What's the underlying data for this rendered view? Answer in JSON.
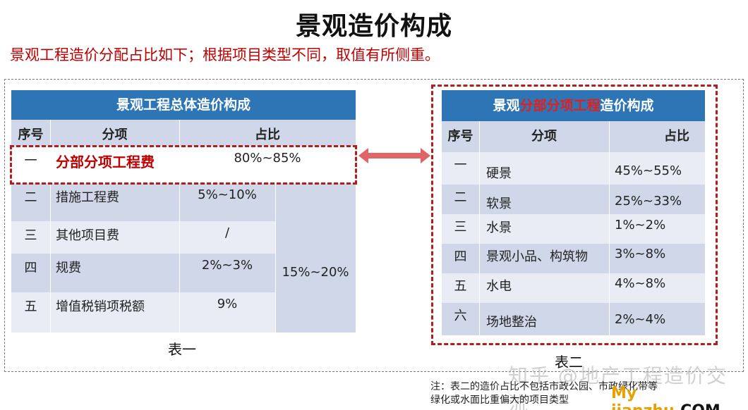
{
  "title": "景观造价构成",
  "subtitle": "景观工程造价分配占比如下；根据项目类型不同，取值有所侧重。",
  "table1": {
    "title": "景观工程总体造价构成",
    "headers": [
      "序号",
      "分项",
      "占比"
    ],
    "rows": [
      {
        "no": "一",
        "item": "分部分项工程费",
        "ratio": "80%~85%"
      },
      {
        "no": "二",
        "item": "措施工程费",
        "ratio": "5%~10%"
      },
      {
        "no": "三",
        "item": "其他项目费",
        "ratio": "/"
      },
      {
        "no": "四",
        "item": "规费",
        "ratio": "2%~3%"
      },
      {
        "no": "五",
        "item": "增值税销项税额",
        "ratio": "9%"
      }
    ],
    "combined_ratio": "15%~20%",
    "caption": "表一"
  },
  "table2": {
    "title_prefix": "景观",
    "title_highlight": "分部分项工程",
    "title_suffix": "造价构成",
    "headers": [
      "序号",
      "分项",
      "占比"
    ],
    "rows": [
      {
        "no": "一",
        "item": "硬景",
        "ratio": "45%~55%"
      },
      {
        "no": "二",
        "item": "软景",
        "ratio": "25%~33%"
      },
      {
        "no": "三",
        "item": "水景",
        "ratio": "1%~2%"
      },
      {
        "no": "四",
        "item": "景观小品、构筑物",
        "ratio": "3%~8%"
      },
      {
        "no": "五",
        "item": "水电",
        "ratio": "4%~8%"
      },
      {
        "no": "六",
        "item": "场地整治",
        "ratio": "2%~4%"
      }
    ],
    "caption": "表二"
  },
  "note_line1": "注：表二的造价占比不包括市政公园、市政绿化带等",
  "note_line2": "绿化或水面比重偏大的项目类型",
  "watermark": "知乎 @地产工程造价交流",
  "site_name": "My jianzhu",
  "site_suffix": ".COM",
  "colors": {
    "header_blue": "#2e75b6",
    "accent_red": "#c00000",
    "row_dark": "#cfd7e8",
    "row_light": "#e9ecf4"
  }
}
